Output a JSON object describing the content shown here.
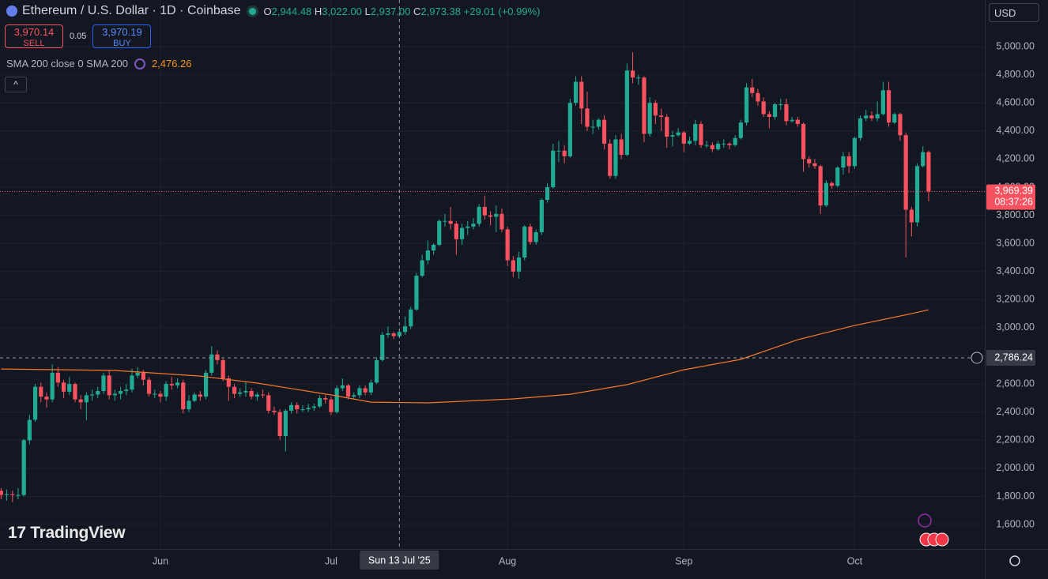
{
  "chart_data": {
    "type": "candlestick",
    "title": "Ethereum / U.S. Dollar · 1D · Coinbase",
    "ohlc": [
      {
        "label": "O",
        "value": "2,944.48"
      },
      {
        "label": "H",
        "value": "3,022.00"
      },
      {
        "label": "L",
        "value": "2,937.00"
      },
      {
        "label": "C",
        "value": "2,973.38"
      }
    ],
    "change": "+29.01 (+0.99%)",
    "sell": {
      "price": "3,970.14",
      "label": "SELL"
    },
    "spread": "0.05",
    "buy": {
      "price": "3,970.19",
      "label": "BUY"
    },
    "currency": "USD",
    "watermark": "TradingView",
    "up_color": "#22ab94",
    "down_color": "#f7525f",
    "candles": {
      "open": [
        1840,
        1810,
        1816,
        1810,
        1810,
        2200,
        2345,
        2580,
        2510,
        2490,
        2680,
        2610,
        2545,
        2600,
        2490,
        2470,
        2520,
        2525,
        2550,
        2660,
        2520,
        2530,
        2550,
        2560,
        2660,
        2680,
        2630,
        2530,
        2530,
        2510,
        2600,
        2590,
        2610,
        2420,
        2480,
        2525,
        2510,
        2680,
        2810,
        2770,
        2640,
        2580,
        2530,
        2540,
        2550,
        2510,
        2525,
        2520,
        2410,
        2400,
        2230,
        2410,
        2450,
        2420,
        2420,
        2430,
        2440,
        2500,
        2490,
        2400,
        2570,
        2590,
        2510,
        2520,
        2570,
        2540,
        2610,
        2770,
        2950,
        2960,
        2940,
        2970,
        3010,
        3130,
        3370,
        3480,
        3550,
        3590,
        3760,
        3760,
        3740,
        3630,
        3710,
        3720,
        3740,
        3860,
        3800,
        3790,
        3810,
        3700,
        3480,
        3400,
        3500,
        3720,
        3610,
        3680,
        3910,
        4000,
        4260,
        4260,
        4220,
        4600,
        4750,
        4560,
        4430,
        4430,
        4480,
        4310,
        4080,
        4340,
        4230,
        4830,
        4780,
        4780,
        4380,
        4600,
        4510,
        4500,
        4360,
        4370,
        4390,
        4310,
        4330,
        4450,
        4300,
        4300,
        4270,
        4310,
        4310,
        4300,
        4350,
        4460,
        4710,
        4670,
        4610,
        4520,
        4500,
        4590,
        4590,
        4470,
        4480,
        4450,
        4200,
        4170,
        4150,
        3870,
        4030,
        4010,
        4140,
        4220,
        4150,
        4350,
        4490,
        4510,
        4490,
        4520,
        4690,
        4460,
        4520,
        4370,
        3840,
        3750,
        4150,
        4250
      ],
      "high": [
        1860,
        1850,
        1840,
        1860,
        2210,
        2380,
        2600,
        2610,
        2540,
        2740,
        2720,
        2630,
        2650,
        2610,
        2520,
        2540,
        2560,
        2580,
        2680,
        2700,
        2560,
        2580,
        2600,
        2710,
        2720,
        2700,
        2650,
        2560,
        2550,
        2620,
        2650,
        2640,
        2630,
        2520,
        2540,
        2550,
        2700,
        2870,
        2840,
        2780,
        2660,
        2600,
        2570,
        2620,
        2570,
        2540,
        2560,
        2540,
        2440,
        2420,
        2420,
        2470,
        2470,
        2450,
        2460,
        2460,
        2520,
        2520,
        2510,
        2590,
        2640,
        2600,
        2540,
        2590,
        2590,
        2630,
        2790,
        2970,
        3010,
        2970,
        2990,
        3080,
        3150,
        3390,
        3520,
        3620,
        3600,
        3770,
        3810,
        3860,
        3760,
        3740,
        3760,
        3780,
        3880,
        3940,
        3830,
        3870,
        3850,
        3720,
        3510,
        3540,
        3730,
        3740,
        3700,
        3920,
        4030,
        4310,
        4330,
        4300,
        4630,
        4790,
        4790,
        4680,
        4480,
        4490,
        4510,
        4340,
        4370,
        4380,
        4880,
        4960,
        4800,
        4790,
        4640,
        4620,
        4560,
        4520,
        4400,
        4420,
        4400,
        4360,
        4480,
        4470,
        4330,
        4320,
        4330,
        4340,
        4320,
        4370,
        4480,
        4740,
        4770,
        4700,
        4640,
        4540,
        4600,
        4630,
        4630,
        4500,
        4500,
        4460,
        4220,
        4200,
        4160,
        4050,
        4040,
        4150,
        4250,
        4250,
        4360,
        4510,
        4550,
        4540,
        4610,
        4750,
        4750,
        4530,
        4530,
        4390,
        3860,
        4170,
        4290,
        4260
      ],
      "low": [
        1780,
        1770,
        1760,
        1780,
        1800,
        2170,
        2330,
        2470,
        2430,
        2470,
        2580,
        2500,
        2520,
        2470,
        2420,
        2340,
        2480,
        2500,
        2530,
        2490,
        2480,
        2490,
        2520,
        2540,
        2640,
        2590,
        2510,
        2500,
        2470,
        2480,
        2560,
        2570,
        2390,
        2400,
        2470,
        2480,
        2490,
        2660,
        2740,
        2620,
        2480,
        2500,
        2510,
        2510,
        2490,
        2480,
        2500,
        2390,
        2380,
        2200,
        2120,
        2390,
        2390,
        2400,
        2400,
        2410,
        2430,
        2460,
        2380,
        2390,
        2550,
        2490,
        2490,
        2500,
        2520,
        2520,
        2600,
        2760,
        2930,
        2920,
        2930,
        2950,
        2990,
        3120,
        3360,
        3450,
        3520,
        3580,
        3720,
        3700,
        3520,
        3590,
        3660,
        3700,
        3720,
        3770,
        3730,
        3680,
        3680,
        3440,
        3360,
        3350,
        3480,
        3590,
        3590,
        3660,
        3890,
        3990,
        4180,
        4170,
        4210,
        4580,
        4450,
        4400,
        4380,
        4410,
        4270,
        4060,
        4060,
        4200,
        4220,
        4740,
        4730,
        4320,
        4360,
        4450,
        4400,
        4280,
        4290,
        4360,
        4250,
        4300,
        4300,
        4280,
        4280,
        4250,
        4260,
        4280,
        4270,
        4290,
        4340,
        4440,
        4640,
        4580,
        4500,
        4420,
        4480,
        4550,
        4440,
        4460,
        4430,
        4110,
        4140,
        4130,
        3810,
        3860,
        3990,
        4000,
        4090,
        4100,
        4130,
        4330,
        4470,
        4470,
        4470,
        4510,
        4430,
        4450,
        4330,
        3500,
        3650,
        3720,
        4140,
        3900
      ],
      "close": [
        1810,
        1816,
        1810,
        1810,
        2200,
        2345,
        2580,
        2510,
        2490,
        2680,
        2610,
        2545,
        2600,
        2490,
        2470,
        2520,
        2525,
        2550,
        2660,
        2520,
        2530,
        2550,
        2560,
        2660,
        2680,
        2630,
        2530,
        2530,
        2510,
        2600,
        2590,
        2610,
        2420,
        2480,
        2525,
        2510,
        2680,
        2810,
        2770,
        2640,
        2580,
        2530,
        2540,
        2550,
        2510,
        2525,
        2520,
        2410,
        2400,
        2230,
        2410,
        2450,
        2420,
        2420,
        2430,
        2440,
        2500,
        2490,
        2400,
        2570,
        2590,
        2510,
        2520,
        2570,
        2540,
        2610,
        2770,
        2950,
        2960,
        2940,
        2970,
        3010,
        3130,
        3370,
        3480,
        3550,
        3590,
        3760,
        3760,
        3740,
        3630,
        3710,
        3720,
        3740,
        3860,
        3800,
        3790,
        3810,
        3700,
        3480,
        3400,
        3500,
        3720,
        3610,
        3680,
        3910,
        4000,
        4260,
        4260,
        4220,
        4600,
        4750,
        4560,
        4430,
        4430,
        4480,
        4310,
        4080,
        4340,
        4230,
        4830,
        4780,
        4780,
        4380,
        4600,
        4510,
        4500,
        4360,
        4370,
        4390,
        4310,
        4330,
        4450,
        4300,
        4300,
        4270,
        4310,
        4310,
        4300,
        4350,
        4460,
        4710,
        4670,
        4610,
        4520,
        4500,
        4590,
        4590,
        4470,
        4480,
        4450,
        4200,
        4170,
        4150,
        3870,
        4030,
        4010,
        4140,
        4220,
        4150,
        4350,
        4490,
        4510,
        4490,
        4520,
        4690,
        4460,
        4520,
        4370,
        3840,
        3750,
        4150,
        4250,
        3970
      ]
    },
    "sma": {
      "name": "SMA 200 close 0 SMA 200",
      "legend_value": "2,476.26",
      "color": "#f7782a",
      "x": [
        0,
        20,
        35,
        45,
        58,
        65,
        75,
        90,
        100,
        110,
        120,
        130,
        140,
        150,
        160,
        163
      ],
      "values": [
        2707,
        2696,
        2656,
        2606,
        2522,
        2471,
        2466,
        2494,
        2527,
        2595,
        2701,
        2775,
        2915,
        3016,
        3100,
        3128
      ]
    },
    "xlim": [
      -0.19,
      172.87
    ],
    "xticks": [
      {
        "value": 28,
        "label": "Jun"
      },
      {
        "value": 58,
        "label": "Jul"
      },
      {
        "value": 89,
        "label": "Aug"
      },
      {
        "value": 120,
        "label": "Sep"
      },
      {
        "value": 150,
        "label": "Oct"
      }
    ],
    "ylim": [
      1426,
      5332
    ],
    "yticks": [
      {
        "value": 1600,
        "label": "1,600.00"
      },
      {
        "value": 1800,
        "label": "1,800.00"
      },
      {
        "value": 2000,
        "label": "2,000.00"
      },
      {
        "value": 2200,
        "label": "2,200.00"
      },
      {
        "value": 2400,
        "label": "2,400.00"
      },
      {
        "value": 2600,
        "label": "2,600.00"
      },
      {
        "value": 2800,
        "label": "2,800.00"
      },
      {
        "value": 3000,
        "label": "3,000.00"
      },
      {
        "value": 3200,
        "label": "3,200.00"
      },
      {
        "value": 3400,
        "label": "3,400.00"
      },
      {
        "value": 3600,
        "label": "3,600.00"
      },
      {
        "value": 3800,
        "label": "3,800.00"
      },
      {
        "value": 4000,
        "label": "4,000.00"
      },
      {
        "value": 4200,
        "label": "4,200.00"
      },
      {
        "value": 4400,
        "label": "4,400.00"
      },
      {
        "value": 4600,
        "label": "4,600.00"
      },
      {
        "value": 4800,
        "label": "4,800.00"
      },
      {
        "value": 5000,
        "label": "5,000.00"
      }
    ],
    "grid": true,
    "last_price": {
      "value": 3969.39,
      "label": "3,969.39",
      "countdown": "08:37:26"
    },
    "crosshair": {
      "x": 70,
      "x_label": "Sun 13 Jul '25",
      "price": 2786.24,
      "price_label": "2,786.24"
    }
  }
}
